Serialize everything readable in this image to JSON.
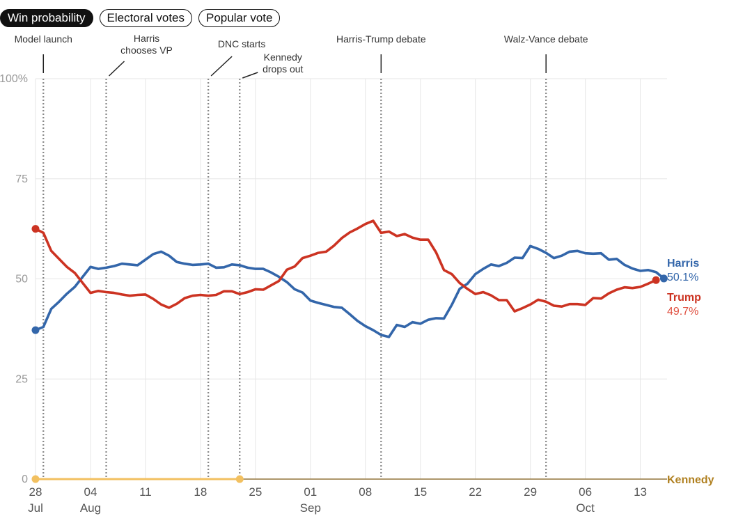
{
  "tabs": [
    {
      "label": "Win probability",
      "active": true
    },
    {
      "label": "Electoral votes",
      "active": false
    },
    {
      "label": "Popular vote",
      "active": false
    }
  ],
  "chart_data": {
    "type": "line",
    "title": "",
    "xlabel": "",
    "ylabel": "",
    "ylim": [
      0,
      100
    ],
    "y_ticks": [
      {
        "value": 0,
        "label": "0"
      },
      {
        "value": 25,
        "label": "25"
      },
      {
        "value": 50,
        "label": "50"
      },
      {
        "value": 75,
        "label": "75"
      },
      {
        "value": 100,
        "label": "100%"
      }
    ],
    "xlim": [
      "2024-07-28",
      "2024-10-16"
    ],
    "x_ticks": [
      {
        "date": "2024-07-28",
        "label": "28",
        "sublabel": "Jul"
      },
      {
        "date": "2024-08-04",
        "label": "04",
        "sublabel": "Aug"
      },
      {
        "date": "2024-08-11",
        "label": "11",
        "sublabel": ""
      },
      {
        "date": "2024-08-18",
        "label": "18",
        "sublabel": ""
      },
      {
        "date": "2024-08-25",
        "label": "25",
        "sublabel": ""
      },
      {
        "date": "2024-09-01",
        "label": "01",
        "sublabel": "Sep"
      },
      {
        "date": "2024-09-08",
        "label": "08",
        "sublabel": ""
      },
      {
        "date": "2024-09-15",
        "label": "15",
        "sublabel": ""
      },
      {
        "date": "2024-09-22",
        "label": "22",
        "sublabel": ""
      },
      {
        "date": "2024-09-29",
        "label": "29",
        "sublabel": ""
      },
      {
        "date": "2024-10-06",
        "label": "06",
        "sublabel": "Oct"
      },
      {
        "date": "2024-10-13",
        "label": "13",
        "sublabel": ""
      }
    ],
    "grid": true,
    "events": [
      {
        "date": "2024-07-29",
        "label": "Model launch"
      },
      {
        "date": "2024-08-06",
        "label": "Harris chooses VP"
      },
      {
        "date": "2024-08-19",
        "label": "DNC starts"
      },
      {
        "date": "2024-08-23",
        "label": "Kennedy drops out"
      },
      {
        "date": "2024-09-10",
        "label": "Harris-Trump debate"
      },
      {
        "date": "2024-10-01",
        "label": "Walz-Vance debate"
      }
    ],
    "series": [
      {
        "name": "Harris",
        "color": "#3366aa",
        "end_label": "50.1%",
        "points": [
          [
            "2024-07-28",
            37.2
          ],
          [
            "2024-07-29",
            38
          ],
          [
            "2024-07-30",
            42.5
          ],
          [
            "2024-07-31",
            44.3
          ],
          [
            "2024-08-01",
            46.3
          ],
          [
            "2024-08-02",
            48
          ],
          [
            "2024-08-03",
            50.5
          ],
          [
            "2024-08-04",
            53
          ],
          [
            "2024-08-05",
            52.5
          ],
          [
            "2024-08-06",
            52.8
          ],
          [
            "2024-08-07",
            53.2
          ],
          [
            "2024-08-08",
            53.8
          ],
          [
            "2024-08-09",
            53.6
          ],
          [
            "2024-08-10",
            53.4
          ],
          [
            "2024-08-11",
            54.8
          ],
          [
            "2024-08-12",
            56.2
          ],
          [
            "2024-08-13",
            56.8
          ],
          [
            "2024-08-14",
            55.8
          ],
          [
            "2024-08-15",
            54.2
          ],
          [
            "2024-08-16",
            53.8
          ],
          [
            "2024-08-17",
            53.5
          ],
          [
            "2024-08-18",
            53.6
          ],
          [
            "2024-08-19",
            53.8
          ],
          [
            "2024-08-20",
            52.8
          ],
          [
            "2024-08-21",
            52.9
          ],
          [
            "2024-08-22",
            53.6
          ],
          [
            "2024-08-23",
            53.4
          ],
          [
            "2024-08-24",
            52.8
          ],
          [
            "2024-08-25",
            52.5
          ],
          [
            "2024-08-26",
            52.5
          ],
          [
            "2024-08-27",
            51.6
          ],
          [
            "2024-08-28",
            50.5
          ],
          [
            "2024-08-29",
            49.2
          ],
          [
            "2024-08-30",
            47.4
          ],
          [
            "2024-08-31",
            46.6
          ],
          [
            "2024-09-01",
            44.6
          ],
          [
            "2024-09-02",
            44
          ],
          [
            "2024-09-03",
            43.5
          ],
          [
            "2024-09-04",
            43
          ],
          [
            "2024-09-05",
            42.8
          ],
          [
            "2024-09-06",
            41.2
          ],
          [
            "2024-09-07",
            39.5
          ],
          [
            "2024-09-08",
            38.2
          ],
          [
            "2024-09-09",
            37.2
          ],
          [
            "2024-09-10",
            36
          ],
          [
            "2024-09-11",
            35.5
          ],
          [
            "2024-09-12",
            38.5
          ],
          [
            "2024-09-13",
            38
          ],
          [
            "2024-09-14",
            39.2
          ],
          [
            "2024-09-15",
            38.8
          ],
          [
            "2024-09-16",
            39.8
          ],
          [
            "2024-09-17",
            40.2
          ],
          [
            "2024-09-18",
            40.1
          ],
          [
            "2024-09-19",
            43.5
          ],
          [
            "2024-09-20",
            47.5
          ],
          [
            "2024-09-21",
            48.8
          ],
          [
            "2024-09-22",
            51.2
          ],
          [
            "2024-09-23",
            52.5
          ],
          [
            "2024-09-24",
            53.6
          ],
          [
            "2024-09-25",
            53.2
          ],
          [
            "2024-09-26",
            54
          ],
          [
            "2024-09-27",
            55.3
          ],
          [
            "2024-09-28",
            55.2
          ],
          [
            "2024-09-29",
            58.2
          ],
          [
            "2024-09-30",
            57.5
          ],
          [
            "2024-10-01",
            56.5
          ],
          [
            "2024-10-02",
            55.2
          ],
          [
            "2024-10-03",
            55.8
          ],
          [
            "2024-10-04",
            56.8
          ],
          [
            "2024-10-05",
            57
          ],
          [
            "2024-10-06",
            56.4
          ],
          [
            "2024-10-07",
            56.3
          ],
          [
            "2024-10-08",
            56.4
          ],
          [
            "2024-10-09",
            54.8
          ],
          [
            "2024-10-10",
            55
          ],
          [
            "2024-10-11",
            53.5
          ],
          [
            "2024-10-12",
            52.6
          ],
          [
            "2024-10-13",
            52
          ],
          [
            "2024-10-14",
            52.2
          ],
          [
            "2024-10-15",
            51.7
          ],
          [
            "2024-10-16",
            50.1
          ]
        ]
      },
      {
        "name": "Trump",
        "color": "#cc3322",
        "end_label": "49.7%",
        "points": [
          [
            "2024-07-28",
            62.5
          ],
          [
            "2024-07-29",
            61.5
          ],
          [
            "2024-07-30",
            57
          ],
          [
            "2024-07-31",
            55
          ],
          [
            "2024-08-01",
            53
          ],
          [
            "2024-08-02",
            51.5
          ],
          [
            "2024-08-03",
            49
          ],
          [
            "2024-08-04",
            46.5
          ],
          [
            "2024-08-05",
            47
          ],
          [
            "2024-08-06",
            46.7
          ],
          [
            "2024-08-07",
            46.5
          ],
          [
            "2024-08-08",
            46.1
          ],
          [
            "2024-08-09",
            45.8
          ],
          [
            "2024-08-10",
            46
          ],
          [
            "2024-08-11",
            46.1
          ],
          [
            "2024-08-12",
            45
          ],
          [
            "2024-08-13",
            43.6
          ],
          [
            "2024-08-14",
            42.8
          ],
          [
            "2024-08-15",
            43.8
          ],
          [
            "2024-08-16",
            45.2
          ],
          [
            "2024-08-17",
            45.8
          ],
          [
            "2024-08-18",
            46
          ],
          [
            "2024-08-19",
            45.8
          ],
          [
            "2024-08-20",
            46
          ],
          [
            "2024-08-21",
            46.9
          ],
          [
            "2024-08-22",
            46.9
          ],
          [
            "2024-08-23",
            46.2
          ],
          [
            "2024-08-24",
            46.7
          ],
          [
            "2024-08-25",
            47.4
          ],
          [
            "2024-08-26",
            47.3
          ],
          [
            "2024-08-27",
            48.4
          ],
          [
            "2024-08-28",
            49.5
          ],
          [
            "2024-08-29",
            52.3
          ],
          [
            "2024-08-30",
            53.1
          ],
          [
            "2024-08-31",
            55.2
          ],
          [
            "2024-09-01",
            55.8
          ],
          [
            "2024-09-02",
            56.5
          ],
          [
            "2024-09-03",
            56.8
          ],
          [
            "2024-09-04",
            58.3
          ],
          [
            "2024-09-05",
            60.2
          ],
          [
            "2024-09-06",
            61.6
          ],
          [
            "2024-09-07",
            62.6
          ],
          [
            "2024-09-08",
            63.7
          ],
          [
            "2024-09-09",
            64.5
          ],
          [
            "2024-09-10",
            61.5
          ],
          [
            "2024-09-11",
            61.8
          ],
          [
            "2024-09-12",
            60.7
          ],
          [
            "2024-09-13",
            61.2
          ],
          [
            "2024-09-14",
            60.3
          ],
          [
            "2024-09-15",
            59.8
          ],
          [
            "2024-09-16",
            59.8
          ],
          [
            "2024-09-17",
            56.6
          ],
          [
            "2024-09-18",
            52.2
          ],
          [
            "2024-09-19",
            51.2
          ],
          [
            "2024-09-20",
            49
          ],
          [
            "2024-09-21",
            47.5
          ],
          [
            "2024-09-22",
            46.2
          ],
          [
            "2024-09-23",
            46.7
          ],
          [
            "2024-09-24",
            45.9
          ],
          [
            "2024-09-25",
            44.7
          ],
          [
            "2024-09-26",
            44.7
          ],
          [
            "2024-09-27",
            41.9
          ],
          [
            "2024-09-28",
            42.7
          ],
          [
            "2024-09-29",
            43.6
          ],
          [
            "2024-09-30",
            44.8
          ],
          [
            "2024-10-01",
            44.3
          ],
          [
            "2024-10-02",
            43.3
          ],
          [
            "2024-10-03",
            43.1
          ],
          [
            "2024-10-04",
            43.7
          ],
          [
            "2024-10-05",
            43.7
          ],
          [
            "2024-10-06",
            43.5
          ],
          [
            "2024-10-07",
            45.2
          ],
          [
            "2024-10-08",
            45.1
          ],
          [
            "2024-10-09",
            46.4
          ],
          [
            "2024-10-10",
            47.3
          ],
          [
            "2024-10-11",
            47.9
          ],
          [
            "2024-10-12",
            47.7
          ],
          [
            "2024-10-13",
            48
          ],
          [
            "2024-10-14",
            48.8
          ],
          [
            "2024-10-15",
            49.7
          ]
        ]
      },
      {
        "name": "Kennedy",
        "color": "#f2c060",
        "label_color": "#b08020",
        "end_label": "",
        "points": [
          [
            "2024-07-28",
            0
          ],
          [
            "2024-08-23",
            0
          ]
        ]
      }
    ]
  }
}
